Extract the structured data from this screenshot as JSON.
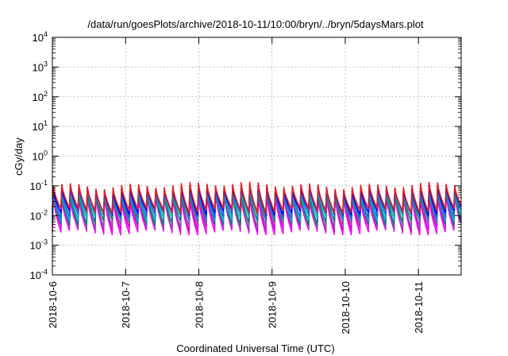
{
  "chart_data": {
    "type": "line",
    "title": "/data/run/goesPlots/archive/2018-10-11/10:00/bryn/../bryn/5daysMars.plot",
    "xlabel": "Coordinated Universal Time (UTC)",
    "ylabel": "cGy/day",
    "y_scale": "log",
    "ylim": [
      0.0001,
      10000
    ],
    "y_ticks": [
      {
        "base": "10",
        "exp": "-4"
      },
      {
        "base": "10",
        "exp": "-3"
      },
      {
        "base": "10",
        "exp": "-2"
      },
      {
        "base": "10",
        "exp": "-1"
      },
      {
        "base": "10",
        "exp": "0"
      },
      {
        "base": "10",
        "exp": "1"
      },
      {
        "base": "10",
        "exp": "2"
      },
      {
        "base": "10",
        "exp": "3"
      },
      {
        "base": "10",
        "exp": "4"
      }
    ],
    "xlim": [
      "2018-10-06",
      "2018-10-11T14:00"
    ],
    "x_ticks": [
      "2018-10-6",
      "2018-10-7",
      "2018-10-8",
      "2018-10-9",
      "2018-10-10",
      "2018-10-11"
    ],
    "grid": true,
    "cycle_hours": 2.8,
    "series_colors": [
      "#ff00ff",
      "#dd00dd",
      "#8855aa",
      "#008080",
      "#00bbbb",
      "#2266dd",
      "#0000ff",
      "#dd2222"
    ],
    "series": [
      {
        "trough": 0.0028,
        "peak": 0.045,
        "color": "#ff00ff"
      },
      {
        "trough": 0.0036,
        "peak": 0.052,
        "color": "#dd00dd"
      },
      {
        "trough": 0.0045,
        "peak": 0.058,
        "color": "#8855aa"
      },
      {
        "trough": 0.0062,
        "peak": 0.066,
        "color": "#008080"
      },
      {
        "trough": 0.0085,
        "peak": 0.074,
        "color": "#00bbbb"
      },
      {
        "trough": 0.0105,
        "peak": 0.083,
        "color": "#2266dd"
      },
      {
        "trough": 0.013,
        "peak": 0.092,
        "color": "#0000ff"
      },
      {
        "trough": 0.015,
        "peak": 0.105,
        "color": "#dd2222"
      }
    ]
  }
}
